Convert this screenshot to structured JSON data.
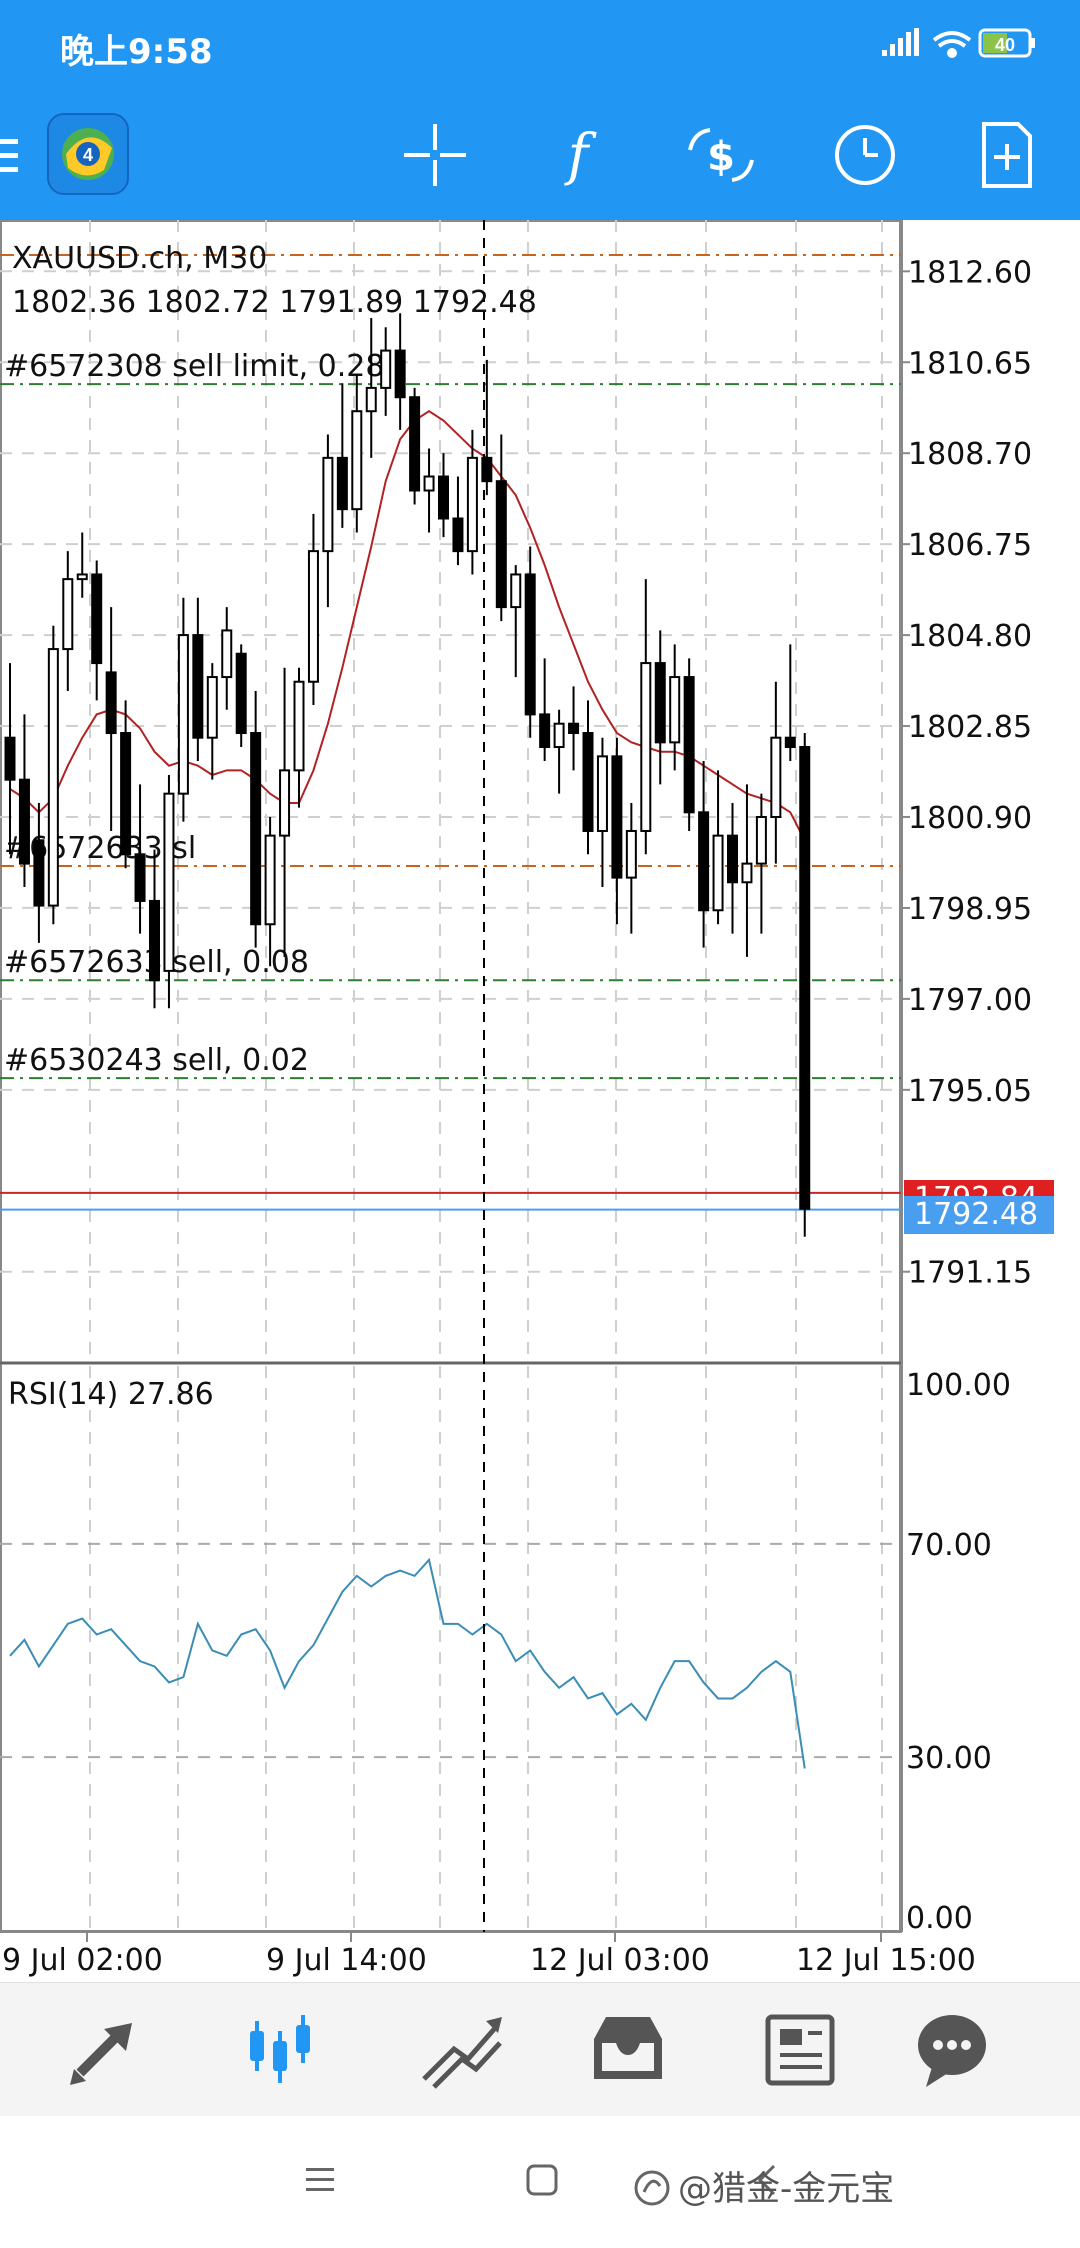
{
  "status_bar": {
    "time": "晚上9:58",
    "battery": "40",
    "icons": [
      "signal-icon",
      "wifi-icon",
      "battery-icon"
    ]
  },
  "toolbar": {
    "items": [
      "menu-icon",
      "app-logo-icon",
      "crosshair-icon",
      "indicators-icon",
      "symbol-icon",
      "timeframe-icon",
      "new-order-icon"
    ]
  },
  "chart": {
    "symbol_line": "XAUUSD.ch, M30",
    "ohlc_line": "1802.36 1802.72 1791.89 1792.48",
    "price_axis": [
      "1812.60",
      "1810.65",
      "1808.70",
      "1806.75",
      "1804.80",
      "1802.85",
      "1800.90",
      "1798.95",
      "1797.00",
      "1795.05",
      "1791.15"
    ],
    "bid_badge": "1792.48",
    "ask_badge": "1792.84",
    "order_labels": [
      "#6572308 sell limit, 0.28",
      "#6572633 sl",
      "#6572633 sell, 0.08",
      "#6530243 sell, 0.02"
    ],
    "rsi_label": "RSI(14) 27.86",
    "rsi_axis": [
      "100.00",
      "70.00",
      "30.00",
      "0.00"
    ],
    "time_axis": [
      "9 Jul 02:00",
      "9 Jul 14:00",
      "12 Jul 03:00",
      "12 Jul 15:00"
    ],
    "colors": {
      "candle": "#000000",
      "ma_line": "#b22222",
      "rsi_line": "#3a8db5",
      "ask_badge": "#e02020",
      "bid_badge": "#2196f3",
      "order_line_green": "#2e7d32",
      "order_line_orange": "#c8641e"
    }
  },
  "chart_data": {
    "type": "candlestick",
    "title": "XAUUSD.ch, M30",
    "ylim": [
      1789.3,
      1813.7
    ],
    "candles": [
      [
        1802.6,
        1804.2,
        1800.1,
        1801.7
      ],
      [
        1801.7,
        1803.1,
        1799.4,
        1799.9
      ],
      [
        1800.4,
        1801.2,
        1798.2,
        1799.0
      ],
      [
        1799.0,
        1805.0,
        1798.6,
        1804.5
      ],
      [
        1804.5,
        1806.6,
        1803.6,
        1806.0
      ],
      [
        1806.0,
        1807.0,
        1805.6,
        1806.1
      ],
      [
        1806.1,
        1806.4,
        1803.4,
        1804.2
      ],
      [
        1804.0,
        1805.4,
        1800.6,
        1802.7
      ],
      [
        1802.7,
        1803.4,
        1799.8,
        1800.1
      ],
      [
        1800.1,
        1801.6,
        1798.4,
        1799.1
      ],
      [
        1799.1,
        1800.2,
        1796.8,
        1797.4
      ],
      [
        1797.6,
        1801.8,
        1796.8,
        1801.4
      ],
      [
        1801.4,
        1805.6,
        1800.8,
        1804.8
      ],
      [
        1804.8,
        1805.6,
        1802.1,
        1802.6
      ],
      [
        1802.6,
        1804.2,
        1801.7,
        1803.9
      ],
      [
        1803.9,
        1805.4,
        1803.2,
        1804.9
      ],
      [
        1804.4,
        1804.6,
        1802.4,
        1802.7
      ],
      [
        1802.7,
        1803.6,
        1798.1,
        1798.6
      ],
      [
        1798.6,
        1800.9,
        1797.7,
        1800.5
      ],
      [
        1800.5,
        1804.1,
        1797.9,
        1801.9
      ],
      [
        1801.9,
        1804.1,
        1801.1,
        1803.8
      ],
      [
        1803.8,
        1807.4,
        1803.3,
        1806.6
      ],
      [
        1806.6,
        1809.1,
        1805.4,
        1808.6
      ],
      [
        1808.6,
        1810.2,
        1807.1,
        1807.5
      ],
      [
        1807.5,
        1810.4,
        1807.0,
        1809.6
      ],
      [
        1809.6,
        1811.6,
        1808.6,
        1810.1
      ],
      [
        1810.1,
        1811.4,
        1809.5,
        1810.9
      ],
      [
        1810.9,
        1811.7,
        1809.2,
        1809.9
      ],
      [
        1809.9,
        1810.1,
        1807.6,
        1807.9
      ],
      [
        1807.9,
        1808.8,
        1807.0,
        1808.2
      ],
      [
        1808.2,
        1808.7,
        1806.9,
        1807.3
      ],
      [
        1807.3,
        1808.2,
        1806.3,
        1806.6
      ],
      [
        1806.6,
        1809.2,
        1806.1,
        1808.6
      ],
      [
        1808.6,
        1810.7,
        1807.8,
        1808.1
      ],
      [
        1808.1,
        1809.1,
        1805.1,
        1805.4
      ],
      [
        1805.4,
        1806.3,
        1803.9,
        1806.1
      ],
      [
        1806.1,
        1806.7,
        1802.6,
        1803.1
      ],
      [
        1803.1,
        1804.3,
        1802.1,
        1802.4
      ],
      [
        1802.4,
        1803.2,
        1801.4,
        1802.9
      ],
      [
        1802.9,
        1803.7,
        1801.9,
        1802.7
      ],
      [
        1802.7,
        1803.4,
        1800.1,
        1800.6
      ],
      [
        1800.6,
        1802.6,
        1799.4,
        1802.2
      ],
      [
        1802.2,
        1802.6,
        1798.6,
        1799.6
      ],
      [
        1799.6,
        1801.2,
        1798.4,
        1800.6
      ],
      [
        1800.6,
        1806.0,
        1800.1,
        1804.2
      ],
      [
        1804.2,
        1804.9,
        1801.6,
        1802.5
      ],
      [
        1802.5,
        1804.6,
        1801.9,
        1803.9
      ],
      [
        1803.9,
        1804.3,
        1800.6,
        1801.0
      ],
      [
        1801.0,
        1802.1,
        1798.1,
        1798.9
      ],
      [
        1798.9,
        1801.9,
        1798.6,
        1800.5
      ],
      [
        1800.5,
        1801.2,
        1798.4,
        1799.5
      ],
      [
        1799.5,
        1801.6,
        1797.9,
        1799.9
      ],
      [
        1799.9,
        1801.4,
        1798.4,
        1800.9
      ],
      [
        1800.9,
        1803.8,
        1799.9,
        1802.6
      ],
      [
        1802.6,
        1804.6,
        1802.1,
        1802.4
      ],
      [
        1802.4,
        1802.7,
        1791.9,
        1792.5
      ]
    ],
    "ma": [
      1801.5,
      1801.3,
      1801.0,
      1801.3,
      1802.0,
      1802.6,
      1803.1,
      1803.2,
      1803.1,
      1802.8,
      1802.3,
      1802.0,
      1802.1,
      1802.0,
      1801.8,
      1801.9,
      1801.9,
      1801.7,
      1801.4,
      1801.2,
      1801.2,
      1801.9,
      1802.9,
      1804.1,
      1805.4,
      1806.7,
      1808.1,
      1809.0,
      1809.4,
      1809.6,
      1809.4,
      1809.1,
      1808.8,
      1808.6,
      1808.2,
      1807.8,
      1807.1,
      1806.3,
      1805.4,
      1804.6,
      1803.8,
      1803.2,
      1802.7,
      1802.5,
      1802.4,
      1802.3,
      1802.3,
      1802.2,
      1802.0,
      1801.8,
      1801.6,
      1801.4,
      1801.3,
      1801.2,
      1801.0,
      1800.4
    ],
    "rsi": [
      49,
      52,
      47,
      51,
      55,
      56,
      53,
      54,
      51,
      48,
      47,
      44,
      45,
      55,
      50,
      49,
      53,
      54,
      50,
      43,
      48,
      51,
      56,
      61,
      64,
      62,
      64,
      65,
      64,
      67,
      55,
      55,
      53,
      55,
      53,
      48,
      50,
      46,
      43,
      45,
      41,
      42,
      38,
      40,
      37,
      43,
      48,
      48,
      44,
      41,
      41,
      43,
      46,
      48,
      46,
      27.86
    ],
    "bid": 1792.48,
    "ask": 1792.84,
    "orders": [
      {
        "label": "#6572308 sell limit, 0.28",
        "price": 1810.18,
        "style": "green"
      },
      {
        "label": "#6572633 sl",
        "price": 1799.85,
        "style": "orange"
      },
      {
        "label": "#6572633 sell, 0.08",
        "price": 1797.4,
        "style": "green"
      },
      {
        "label": "#6530243 sell, 0.02",
        "price": 1795.3,
        "style": "green"
      },
      {
        "label": "",
        "price": 1812.95,
        "style": "orange"
      }
    ],
    "rsi_levels": [
      70,
      30
    ]
  }
}
